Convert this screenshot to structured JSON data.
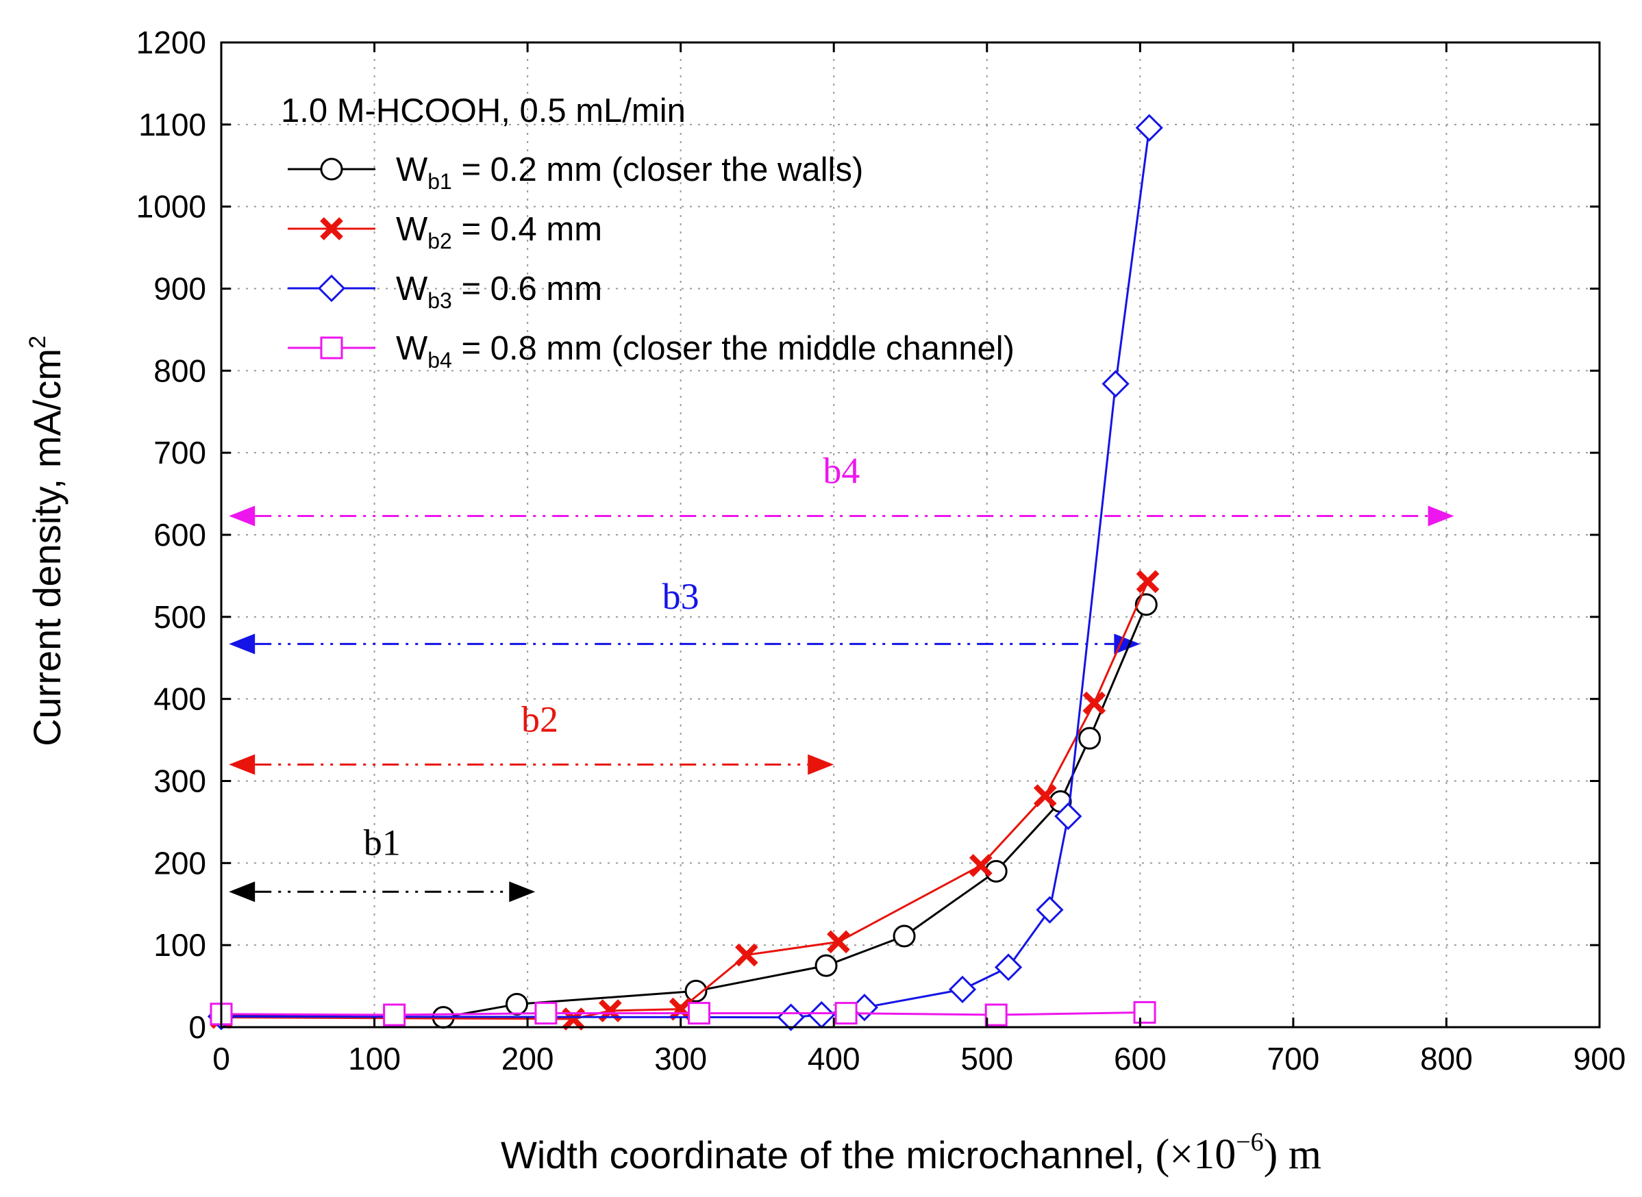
{
  "chart_data": {
    "type": "line",
    "title": "",
    "annotation_title": "1.0 M-HCOOH, 0.5 mL/min",
    "xlabel": "Width coordinate of the microchannel, (×10⁻⁶) m",
    "xlabel_parts": {
      "main": "Width coordinate of the microchannel, ",
      "unit_pre": "(×10",
      "unit_exp": "−6",
      "unit_post": ") m"
    },
    "ylabel": "Current density, mA/cm²",
    "ylabel_parts": {
      "main": "Current density, mA/cm",
      "sup": "2"
    },
    "xlim": [
      0,
      900
    ],
    "ylim": [
      0,
      1200
    ],
    "xticks": [
      "0",
      "100",
      "200",
      "300",
      "400",
      "500",
      "600",
      "700",
      "800",
      "900"
    ],
    "yticks": [
      "0",
      "100",
      "200",
      "300",
      "400",
      "500",
      "600",
      "700",
      "800",
      "900",
      "1000",
      "1100",
      "1200"
    ],
    "grid": true,
    "legend_position": "top-left",
    "series": [
      {
        "name": "Wb1 = 0.2 mm (closer the walls)",
        "label_base": "W",
        "label_sub": "b1",
        "label_rest": " = 0.2 mm (closer the walls)",
        "color": "#000000",
        "marker": "circle",
        "x": [
          0,
          145,
          193,
          310,
          395,
          446,
          506,
          548,
          567,
          604
        ],
        "y": [
          14,
          12,
          28,
          44,
          75,
          111,
          190,
          275,
          352,
          515
        ]
      },
      {
        "name": "Wb2 = 0.4 mm",
        "label_base": "W",
        "label_sub": "b2",
        "label_rest": " = 0.4 mm",
        "color": "#e8140c",
        "marker": "x",
        "x": [
          0,
          230,
          254,
          300,
          343,
          403,
          496,
          538,
          570,
          605
        ],
        "y": [
          12,
          10,
          20,
          22,
          88,
          104,
          197,
          282,
          395,
          543
        ]
      },
      {
        "name": "Wb3 = 0.6 mm",
        "label_base": "W",
        "label_sub": "b3",
        "label_rest": " = 0.6 mm",
        "color": "#1414e6",
        "marker": "diamond",
        "x": [
          0,
          372,
          392,
          420,
          484,
          514,
          541,
          553,
          584,
          606
        ],
        "y": [
          13,
          12,
          15,
          24,
          46,
          73,
          143,
          257,
          784,
          1096
        ]
      },
      {
        "name": "Wb4 = 0.8 mm (closer the middle channel)",
        "label_base": "W",
        "label_sub": "b4",
        "label_rest": " = 0.8 mm (closer the middle channel)",
        "color": "#ee16ee",
        "marker": "square",
        "x": [
          0,
          113,
          212,
          312,
          408,
          506,
          603
        ],
        "y": [
          16,
          15,
          17,
          17,
          17,
          15,
          18
        ]
      }
    ],
    "annotations": [
      {
        "label": "b1",
        "color": "#000000",
        "x_start": 5,
        "x_end": 205,
        "y": 165,
        "label_x": 105,
        "label_y": 225
      },
      {
        "label": "b2",
        "color": "#e8140c",
        "x_start": 5,
        "x_end": 400,
        "y": 320,
        "label_x": 208,
        "label_y": 375
      },
      {
        "label": "b3",
        "color": "#1414e6",
        "x_start": 5,
        "x_end": 600,
        "y": 467,
        "label_x": 300,
        "label_y": 525
      },
      {
        "label": "b4",
        "color": "#ee16ee",
        "x_start": 5,
        "x_end": 805,
        "y": 623,
        "label_x": 405,
        "label_y": 678
      }
    ]
  }
}
